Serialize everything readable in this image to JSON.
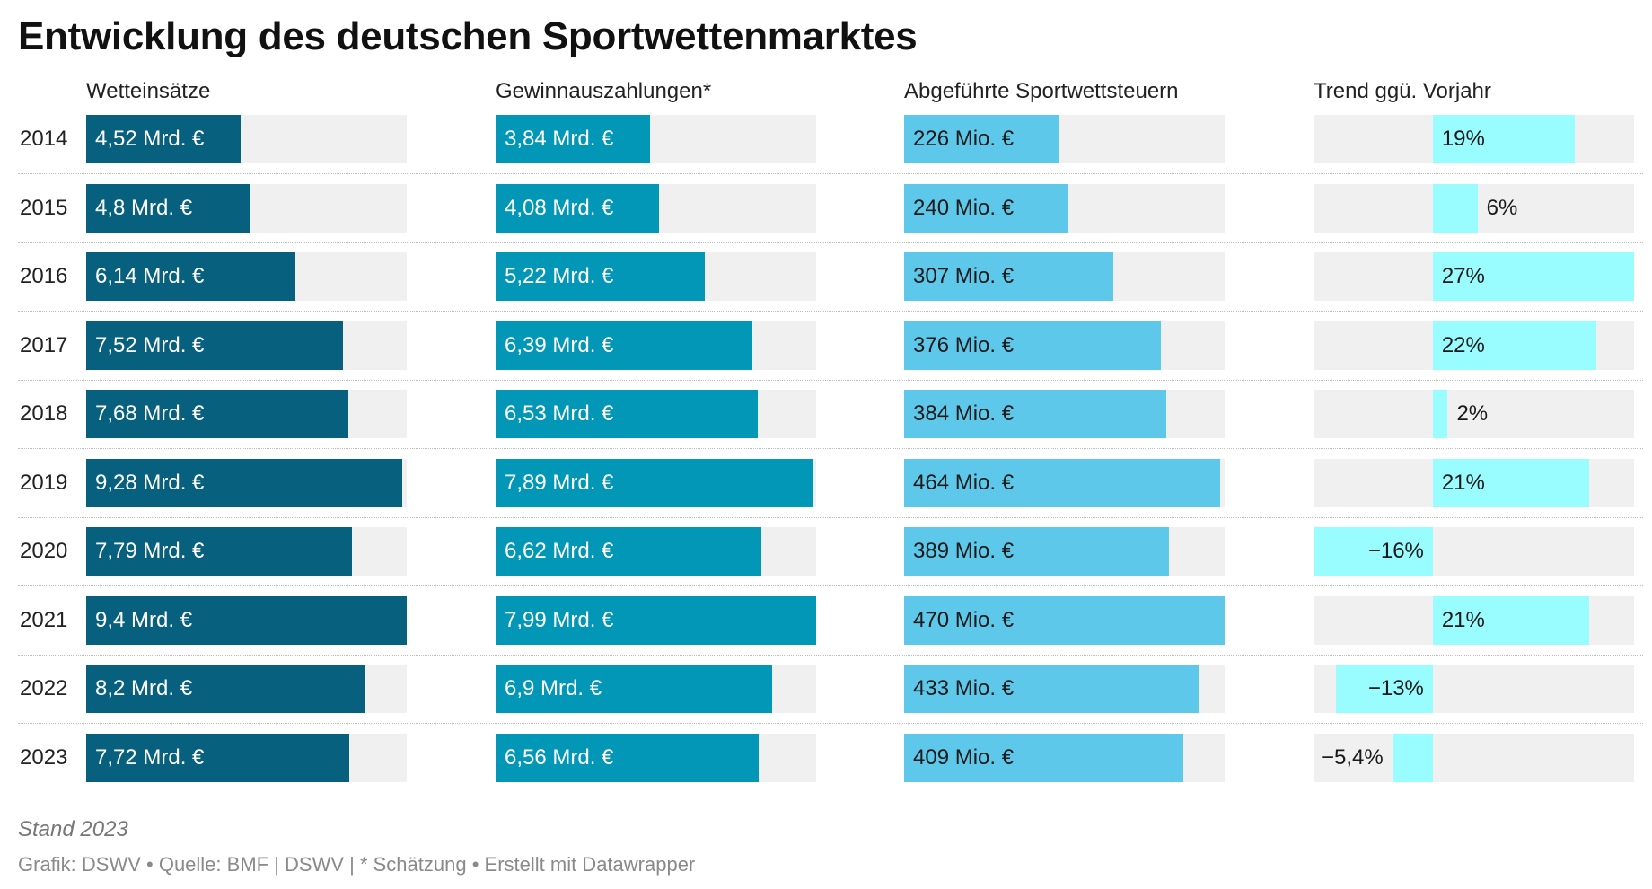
{
  "title": "Entwicklung des deutschen Sportwettenmarktes",
  "note": "Stand 2023",
  "footer": "Grafik: DSWV • Quelle: BMF | DSWV | * Schätzung • Erstellt mit Datawrapper",
  "colors": {
    "track": "#f0f0f0",
    "wetteinsaetze": "#08607f",
    "gewinnauszahlungen": "#0397b7",
    "steuern": "#5ec8ea",
    "trend": "#99fcff"
  },
  "chart_data": {
    "type": "bar",
    "categories": [
      "2014",
      "2015",
      "2016",
      "2017",
      "2018",
      "2019",
      "2020",
      "2021",
      "2022",
      "2023"
    ],
    "series": [
      {
        "name": "Wetteinsätze",
        "values": [
          4.52,
          4.8,
          6.14,
          7.52,
          7.68,
          9.28,
          7.79,
          9.4,
          8.2,
          7.72
        ],
        "labels": [
          "4,52 Mrd. €",
          "4,8 Mrd. €",
          "6,14 Mrd. €",
          "7,52 Mrd. €",
          "7,68 Mrd. €",
          "9,28 Mrd. €",
          "7,79 Mrd. €",
          "9,4 Mrd. €",
          "8,2 Mrd. €",
          "7,72 Mrd. €"
        ],
        "max": 9.4
      },
      {
        "name": "Gewinnauszahlungen*",
        "values": [
          3.84,
          4.08,
          5.22,
          6.39,
          6.53,
          7.89,
          6.62,
          7.99,
          6.9,
          6.56
        ],
        "labels": [
          "3,84 Mrd. €",
          "4,08 Mrd. €",
          "5,22 Mrd. €",
          "6,39 Mrd. €",
          "6,53 Mrd. €",
          "7,89 Mrd. €",
          "6,62 Mrd. €",
          "7,99 Mrd. €",
          "6,9 Mrd. €",
          "6,56 Mrd. €"
        ],
        "max": 7.99
      },
      {
        "name": "Abgeführte Sportwettsteuern",
        "values": [
          226,
          240,
          307,
          376,
          384,
          464,
          389,
          470,
          433,
          409
        ],
        "labels": [
          "226 Mio. €",
          "240 Mio. €",
          "307 Mio. €",
          "376 Mio. €",
          "384 Mio. €",
          "464 Mio. €",
          "389 Mio. €",
          "470 Mio. €",
          "433 Mio. €",
          "409 Mio. €"
        ],
        "max": 470
      },
      {
        "name": "Trend ggü. Vorjahr",
        "values": [
          19,
          6,
          27,
          22,
          2,
          21,
          -16,
          21,
          -13,
          -5.4
        ],
        "labels": [
          "19%",
          "6%",
          "27%",
          "22%",
          "2%",
          "21%",
          "−16%",
          "21%",
          "−13%",
          "−5,4%"
        ],
        "min": -16,
        "max": 27
      }
    ]
  }
}
